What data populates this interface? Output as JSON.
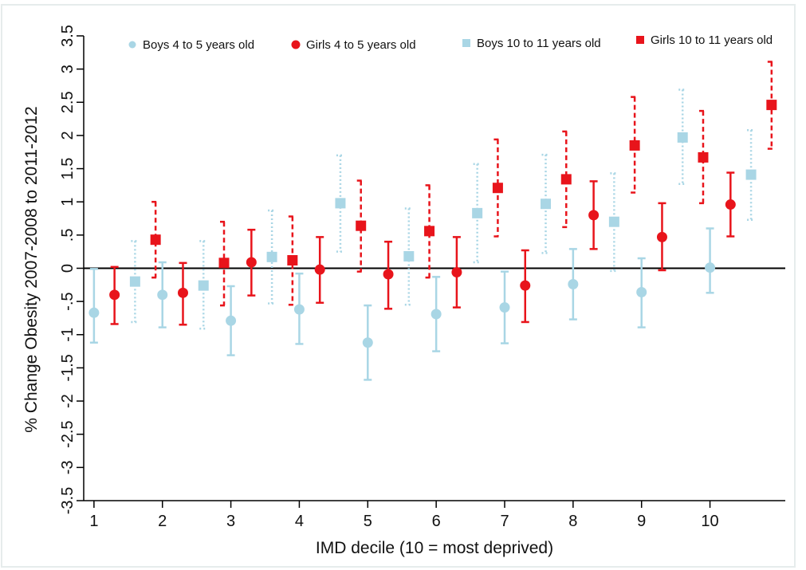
{
  "chart_data": {
    "type": "scatter",
    "subtype": "point-with-error-bars",
    "xlabel": "IMD decile (10 = most deprived)",
    "ylabel": "% Change Obesity 2007-2008 to 2011-2012",
    "ylim": [
      -3.5,
      3.5
    ],
    "xlim": [
      0.85,
      11.1
    ],
    "x_ticks": [
      1,
      2,
      3,
      4,
      5,
      6,
      7,
      8,
      9,
      10
    ],
    "y_ticks": [
      {
        "value": -3.5,
        "label": "-3.5"
      },
      {
        "value": -3,
        "label": "-3"
      },
      {
        "value": -2.5,
        "label": "-2.5"
      },
      {
        "value": -2,
        "label": "-2"
      },
      {
        "value": -1.5,
        "label": "-1.5"
      },
      {
        "value": -1,
        "label": "-1"
      },
      {
        "value": -0.5,
        "label": "-.5"
      },
      {
        "value": 0,
        "label": "0"
      },
      {
        "value": 0.5,
        "label": ".5"
      },
      {
        "value": 1,
        "label": "1"
      },
      {
        "value": 1.5,
        "label": "1.5"
      },
      {
        "value": 2,
        "label": "2"
      },
      {
        "value": 2.5,
        "label": "2.5"
      },
      {
        "value": 3,
        "label": "3"
      },
      {
        "value": 3.5,
        "label": "3.5"
      }
    ],
    "reference_line": 0,
    "grid": false,
    "legend_position": "top",
    "series": [
      {
        "name": "Boys 4 to 5 years old",
        "color": "#a9d6e5",
        "marker": "circle",
        "errorbar_style": "solid",
        "x": [
          1,
          2,
          3,
          4,
          5,
          6,
          7,
          8,
          9,
          10
        ],
        "y": [
          -0.67,
          -0.4,
          -0.79,
          -0.62,
          -1.12,
          -0.69,
          -0.59,
          -0.24,
          -0.36,
          0.01
        ],
        "ci_low": [
          -1.12,
          -0.89,
          -1.31,
          -1.14,
          -1.68,
          -1.25,
          -1.13,
          -0.77,
          -0.89,
          -0.37
        ],
        "ci_high": [
          -0.01,
          0.09,
          -0.27,
          -0.08,
          -0.56,
          -0.13,
          -0.05,
          0.29,
          0.15,
          0.6
        ]
      },
      {
        "name": "Girls 4 to 5 years old",
        "color": "#e8141b",
        "marker": "circle",
        "errorbar_style": "solid",
        "x": [
          1.3,
          2.3,
          3.3,
          4.3,
          5.3,
          6.3,
          7.3,
          8.3,
          9.3,
          10.3
        ],
        "y": [
          -0.4,
          -0.37,
          0.09,
          -0.02,
          -0.09,
          -0.06,
          -0.26,
          0.8,
          0.47,
          0.96
        ],
        "ci_low": [
          -0.84,
          -0.85,
          -0.41,
          -0.52,
          -0.61,
          -0.59,
          -0.81,
          0.29,
          -0.03,
          0.48
        ],
        "ci_high": [
          0.02,
          0.08,
          0.58,
          0.47,
          0.4,
          0.47,
          0.27,
          1.31,
          0.98,
          1.44
        ]
      },
      {
        "name": "Boys 10 to 11 years old",
        "color": "#a9d6e5",
        "marker": "square",
        "errorbar_style": "dotted",
        "x": [
          1.6,
          2.6,
          3.6,
          4.6,
          5.6,
          6.6,
          7.6,
          8.6,
          9.6,
          10.6
        ],
        "y": [
          -0.2,
          -0.26,
          0.17,
          0.98,
          0.18,
          0.83,
          0.97,
          0.7,
          1.97,
          1.41
        ],
        "ci_low": [
          -0.81,
          -0.91,
          -0.53,
          0.25,
          -0.55,
          0.09,
          0.23,
          -0.04,
          1.27,
          0.73
        ],
        "ci_high": [
          0.41,
          0.41,
          0.87,
          1.7,
          0.9,
          1.57,
          1.71,
          1.43,
          2.69,
          2.08
        ]
      },
      {
        "name": "Girls 10 to 11 years old",
        "color": "#e8141b",
        "marker": "square",
        "errorbar_style": "dashed",
        "x": [
          1.9,
          2.9,
          3.9,
          4.9,
          5.9,
          6.9,
          7.9,
          8.9,
          9.9,
          10.9
        ],
        "y": [
          0.43,
          0.08,
          0.12,
          0.64,
          0.56,
          1.21,
          1.34,
          1.85,
          1.67,
          2.46
        ],
        "ci_low": [
          -0.14,
          -0.56,
          -0.55,
          -0.05,
          -0.14,
          0.48,
          0.62,
          1.14,
          0.98,
          1.8
        ],
        "ci_high": [
          1.0,
          0.7,
          0.78,
          1.32,
          1.25,
          1.94,
          2.06,
          2.58,
          2.37,
          3.11
        ]
      }
    ]
  }
}
